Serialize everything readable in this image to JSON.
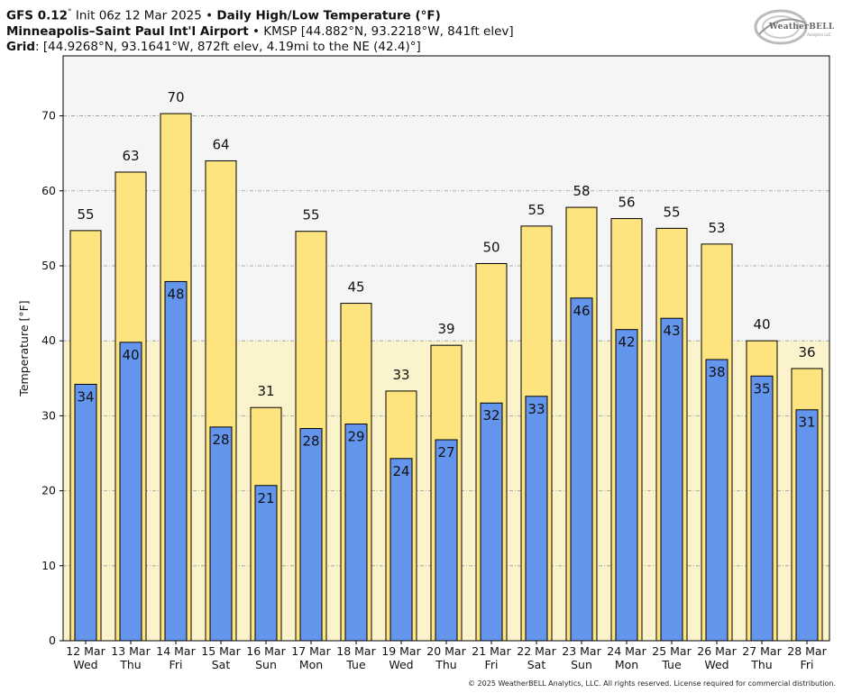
{
  "header": {
    "model": "GFS 0.12",
    "deg": "°",
    "init": " Init 06z 12 Mar 2025",
    "bullet": " • ",
    "product": "Daily High/Low Temperature (°F)",
    "station_name": "Minneapolis–Saint Paul Int'l Airport",
    "station_info": "KMSP [44.882°N, 93.2218°W, 841ft elev]",
    "grid_label": "Grid",
    "grid_info": ": [44.9268°N, 93.1641°W, 872ft elev, 4.19mi to the NE (42.4)°]"
  },
  "logo": {
    "text": "WeatherBELL",
    "sub": "Analytics LLC"
  },
  "copyright": "© 2025 WeatherBELL Analytics, LLC. All rights reserved. License required for commercial distribution.",
  "colors": {
    "high": "#fde47f",
    "low": "#6495ed",
    "plot_bg": "#f5f5f5",
    "plot_bg_lower": "#fbf3cc",
    "grid": "#999999"
  },
  "chart_data": {
    "type": "bar",
    "ylabel": "Temperature [°F]",
    "ylim": [
      0,
      78
    ],
    "yticks": [
      0,
      10,
      20,
      30,
      40,
      50,
      60,
      70
    ],
    "categories": [
      [
        "12 Mar",
        "Wed"
      ],
      [
        "13 Mar",
        "Thu"
      ],
      [
        "14 Mar",
        "Fri"
      ],
      [
        "15 Mar",
        "Sat"
      ],
      [
        "16 Mar",
        "Sun"
      ],
      [
        "17 Mar",
        "Mon"
      ],
      [
        "18 Mar",
        "Tue"
      ],
      [
        "19 Mar",
        "Wed"
      ],
      [
        "20 Mar",
        "Thu"
      ],
      [
        "21 Mar",
        "Fri"
      ],
      [
        "22 Mar",
        "Sat"
      ],
      [
        "23 Mar",
        "Sun"
      ],
      [
        "24 Mar",
        "Mon"
      ],
      [
        "25 Mar",
        "Tue"
      ],
      [
        "26 Mar",
        "Wed"
      ],
      [
        "27 Mar",
        "Thu"
      ],
      [
        "28 Mar",
        "Fri"
      ]
    ],
    "series": [
      {
        "name": "High",
        "values": [
          54.7,
          62.5,
          70.3,
          64.0,
          31.1,
          54.6,
          45.0,
          33.3,
          39.4,
          50.3,
          55.3,
          57.8,
          56.3,
          55.0,
          52.9,
          40.0,
          36.3
        ],
        "labels": [
          "55",
          "63",
          "70",
          "64",
          "31",
          "55",
          "45",
          "33",
          "39",
          "50",
          "55",
          "58",
          "56",
          "55",
          "53",
          "40",
          "36"
        ]
      },
      {
        "name": "Low",
        "values": [
          34.2,
          39.8,
          47.9,
          28.5,
          20.7,
          28.3,
          28.9,
          24.3,
          26.8,
          31.7,
          32.6,
          45.7,
          41.5,
          43.0,
          37.5,
          35.3,
          30.8
        ],
        "labels": [
          "34",
          "40",
          "48",
          "28",
          "21",
          "28",
          "29",
          "24",
          "27",
          "32",
          "33",
          "46",
          "42",
          "43",
          "38",
          "35",
          "31"
        ]
      }
    ]
  }
}
